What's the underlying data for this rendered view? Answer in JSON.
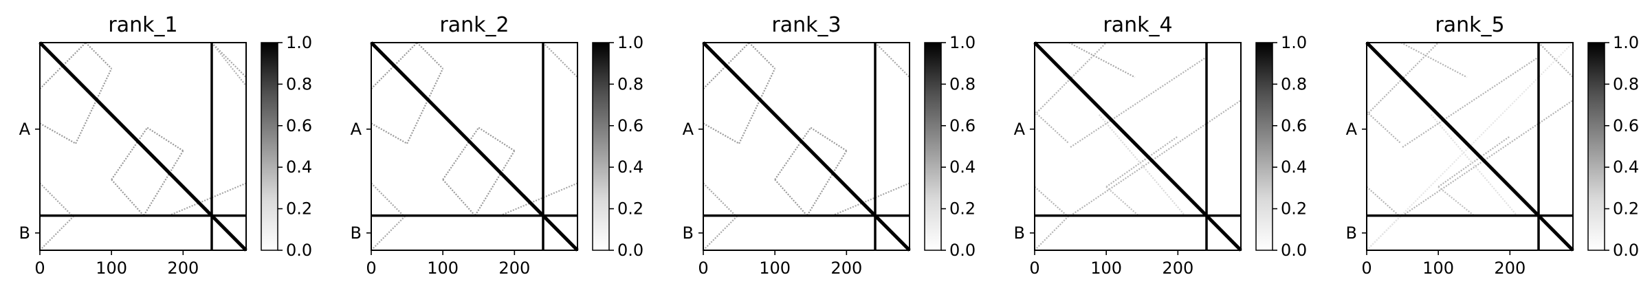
{
  "chart_data": [
    {
      "type": "heatmap",
      "title": "rank_1",
      "xticks": [
        0,
        100,
        200
      ],
      "xlim": [
        0,
        288
      ],
      "ytick_labels": [
        "A",
        "B"
      ],
      "colorbar": {
        "ticks": [
          "0.0",
          "0.2",
          "0.4",
          "0.6",
          "0.8",
          "1.0"
        ],
        "range": [
          0,
          1
        ],
        "cmap": "Greys"
      },
      "separator": 240,
      "pattern": [
        {
          "from": [
            0,
            0
          ],
          "to": [
            288,
            288
          ],
          "value": 1.0
        },
        {
          "from": [
            0,
            64
          ],
          "to": [
            64,
            0
          ],
          "value": 0.4
        },
        {
          "from": [
            64,
            0
          ],
          "to": [
            100,
            36
          ],
          "value": 0.4
        },
        {
          "from": [
            0,
            112
          ],
          "to": [
            50,
            140
          ],
          "value": 0.4
        },
        {
          "from": [
            50,
            140
          ],
          "to": [
            100,
            36
          ],
          "value": 0.4
        },
        {
          "from": [
            100,
            190
          ],
          "to": [
            150,
            118
          ],
          "value": 0.4
        },
        {
          "from": [
            150,
            118
          ],
          "to": [
            200,
            150
          ],
          "value": 0.4
        },
        {
          "from": [
            100,
            190
          ],
          "to": [
            145,
            240
          ],
          "value": 0.4
        },
        {
          "from": [
            200,
            150
          ],
          "to": [
            145,
            240
          ],
          "value": 0.4
        },
        {
          "from": [
            240,
            0
          ],
          "to": [
            288,
            48
          ],
          "value": 0.35
        },
        {
          "from": [
            180,
            240
          ],
          "to": [
            288,
            195
          ],
          "value": 0.35
        },
        {
          "from": [
            0,
            195
          ],
          "to": [
            45,
            240
          ],
          "value": 0.35
        },
        {
          "from": [
            0,
            288
          ],
          "to": [
            48,
            240
          ],
          "value": 0.35
        },
        {
          "from": [
            240,
            0
          ],
          "to": [
            288,
            60
          ],
          "value": 0.3
        }
      ]
    },
    {
      "type": "heatmap",
      "title": "rank_2",
      "xticks": [
        0,
        100,
        200
      ],
      "xlim": [
        0,
        288
      ],
      "ytick_labels": [
        "A",
        "B"
      ],
      "colorbar": {
        "ticks": [
          "0.0",
          "0.2",
          "0.4",
          "0.6",
          "0.8",
          "1.0"
        ],
        "range": [
          0,
          1
        ],
        "cmap": "Greys"
      },
      "separator": 240,
      "pattern": [
        {
          "from": [
            0,
            0
          ],
          "to": [
            288,
            288
          ],
          "value": 1.0
        },
        {
          "from": [
            0,
            64
          ],
          "to": [
            64,
            0
          ],
          "value": 0.4
        },
        {
          "from": [
            64,
            0
          ],
          "to": [
            100,
            36
          ],
          "value": 0.4
        },
        {
          "from": [
            0,
            112
          ],
          "to": [
            50,
            140
          ],
          "value": 0.4
        },
        {
          "from": [
            50,
            140
          ],
          "to": [
            100,
            36
          ],
          "value": 0.4
        },
        {
          "from": [
            100,
            190
          ],
          "to": [
            150,
            118
          ],
          "value": 0.4
        },
        {
          "from": [
            150,
            118
          ],
          "to": [
            200,
            150
          ],
          "value": 0.4
        },
        {
          "from": [
            100,
            190
          ],
          "to": [
            145,
            240
          ],
          "value": 0.4
        },
        {
          "from": [
            200,
            150
          ],
          "to": [
            145,
            240
          ],
          "value": 0.4
        },
        {
          "from": [
            240,
            0
          ],
          "to": [
            288,
            48
          ],
          "value": 0.35
        },
        {
          "from": [
            180,
            240
          ],
          "to": [
            288,
            195
          ],
          "value": 0.35
        },
        {
          "from": [
            0,
            195
          ],
          "to": [
            45,
            240
          ],
          "value": 0.35
        },
        {
          "from": [
            0,
            288
          ],
          "to": [
            48,
            240
          ],
          "value": 0.35
        }
      ]
    },
    {
      "type": "heatmap",
      "title": "rank_3",
      "xticks": [
        0,
        100,
        200
      ],
      "xlim": [
        0,
        288
      ],
      "ytick_labels": [
        "A",
        "B"
      ],
      "colorbar": {
        "ticks": [
          "0.0",
          "0.2",
          "0.4",
          "0.6",
          "0.8",
          "1.0"
        ],
        "range": [
          0,
          1
        ],
        "cmap": "Greys"
      },
      "separator": 240,
      "pattern": [
        {
          "from": [
            0,
            0
          ],
          "to": [
            288,
            288
          ],
          "value": 1.0
        },
        {
          "from": [
            0,
            64
          ],
          "to": [
            64,
            0
          ],
          "value": 0.4
        },
        {
          "from": [
            64,
            0
          ],
          "to": [
            100,
            36
          ],
          "value": 0.4
        },
        {
          "from": [
            0,
            112
          ],
          "to": [
            50,
            140
          ],
          "value": 0.4
        },
        {
          "from": [
            50,
            140
          ],
          "to": [
            100,
            36
          ],
          "value": 0.4
        },
        {
          "from": [
            100,
            190
          ],
          "to": [
            150,
            118
          ],
          "value": 0.4
        },
        {
          "from": [
            150,
            118
          ],
          "to": [
            200,
            150
          ],
          "value": 0.4
        },
        {
          "from": [
            100,
            190
          ],
          "to": [
            145,
            240
          ],
          "value": 0.4
        },
        {
          "from": [
            200,
            150
          ],
          "to": [
            145,
            240
          ],
          "value": 0.4
        },
        {
          "from": [
            240,
            0
          ],
          "to": [
            288,
            48
          ],
          "value": 0.35
        },
        {
          "from": [
            180,
            240
          ],
          "to": [
            288,
            195
          ],
          "value": 0.35
        },
        {
          "from": [
            0,
            195
          ],
          "to": [
            45,
            240
          ],
          "value": 0.35
        },
        {
          "from": [
            0,
            288
          ],
          "to": [
            48,
            240
          ],
          "value": 0.35
        }
      ]
    },
    {
      "type": "heatmap",
      "title": "rank_4",
      "xticks": [
        0,
        100,
        200
      ],
      "xlim": [
        0,
        288
      ],
      "ytick_labels": [
        "A",
        "B"
      ],
      "colorbar": {
        "ticks": [
          "0.0",
          "0.2",
          "0.4",
          "0.6",
          "0.8",
          "1.0"
        ],
        "range": [
          0,
          1
        ],
        "cmap": "Greys"
      },
      "separator": 240,
      "pattern": [
        {
          "from": [
            0,
            0
          ],
          "to": [
            288,
            288
          ],
          "value": 1.0
        },
        {
          "from": [
            0,
            100
          ],
          "to": [
            100,
            0
          ],
          "value": 0.3
        },
        {
          "from": [
            48,
            0
          ],
          "to": [
            140,
            48
          ],
          "value": 0.35
        },
        {
          "from": [
            0,
            96
          ],
          "to": [
            48,
            140
          ],
          "value": 0.3
        },
        {
          "from": [
            50,
            145
          ],
          "to": [
            240,
            20
          ],
          "value": 0.3
        },
        {
          "from": [
            100,
            200
          ],
          "to": [
            200,
            130
          ],
          "value": 0.3
        },
        {
          "from": [
            50,
            240
          ],
          "to": [
            288,
            80
          ],
          "value": 0.3
        },
        {
          "from": [
            100,
            200
          ],
          "to": [
            145,
            240
          ],
          "value": 0.25
        },
        {
          "from": [
            0,
            200
          ],
          "to": [
            45,
            240
          ],
          "value": 0.3
        },
        {
          "from": [
            0,
            288
          ],
          "to": [
            48,
            240
          ],
          "value": 0.3
        },
        {
          "from": [
            90,
            100
          ],
          "to": [
            210,
            240
          ],
          "value": 0.15
        }
      ]
    },
    {
      "type": "heatmap",
      "title": "rank_5",
      "xticks": [
        0,
        100,
        200
      ],
      "xlim": [
        0,
        288
      ],
      "ytick_labels": [
        "A",
        "B"
      ],
      "colorbar": {
        "ticks": [
          "0.0",
          "0.2",
          "0.4",
          "0.6",
          "0.8",
          "1.0"
        ],
        "range": [
          0,
          1
        ],
        "cmap": "Greys"
      },
      "separator": 240,
      "pattern": [
        {
          "from": [
            0,
            0
          ],
          "to": [
            288,
            288
          ],
          "value": 1.0
        },
        {
          "from": [
            0,
            100
          ],
          "to": [
            100,
            0
          ],
          "value": 0.3
        },
        {
          "from": [
            48,
            0
          ],
          "to": [
            140,
            48
          ],
          "value": 0.3
        },
        {
          "from": [
            0,
            96
          ],
          "to": [
            48,
            140
          ],
          "value": 0.3
        },
        {
          "from": [
            50,
            145
          ],
          "to": [
            240,
            20
          ],
          "value": 0.3
        },
        {
          "from": [
            100,
            200
          ],
          "to": [
            200,
            130
          ],
          "value": 0.3
        },
        {
          "from": [
            50,
            240
          ],
          "to": [
            288,
            80
          ],
          "value": 0.3
        },
        {
          "from": [
            0,
            200
          ],
          "to": [
            45,
            240
          ],
          "value": 0.3
        },
        {
          "from": [
            0,
            288
          ],
          "to": [
            48,
            240
          ],
          "value": 0.3
        },
        {
          "from": [
            240,
            0
          ],
          "to": [
            288,
            48
          ],
          "value": 0.3
        },
        {
          "from": [
            100,
            200
          ],
          "to": [
            150,
            240
          ],
          "value": 0.25
        },
        {
          "from": [
            0,
            288
          ],
          "to": [
            288,
            0
          ],
          "value": 0.1
        },
        {
          "from": [
            90,
            100
          ],
          "to": [
            210,
            240
          ],
          "value": 0.12
        }
      ]
    }
  ]
}
